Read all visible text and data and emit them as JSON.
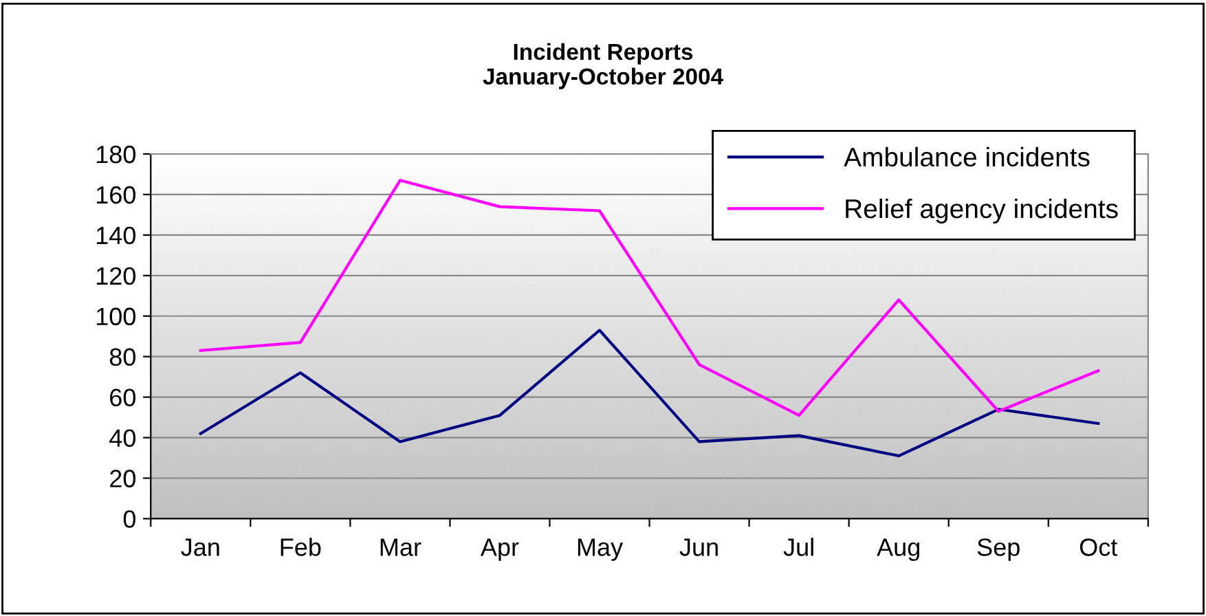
{
  "chart_data": {
    "type": "line",
    "title": "Incident Reports\nJanuary-October 2004",
    "categories": [
      "Jan",
      "Feb",
      "Mar",
      "Apr",
      "May",
      "Jun",
      "Jul",
      "Aug",
      "Sep",
      "Oct"
    ],
    "series": [
      {
        "name": "Ambulance incidents",
        "color": "#000080",
        "values": [
          42,
          72,
          38,
          51,
          93,
          38,
          41,
          31,
          54,
          47
        ]
      },
      {
        "name": "Relief agency incidents",
        "color": "#ff00ff",
        "values": [
          83,
          87,
          167,
          154,
          152,
          76,
          51,
          108,
          53,
          73
        ]
      }
    ],
    "ylim": [
      0,
      180
    ],
    "yticks": [
      0,
      20,
      40,
      60,
      80,
      100,
      120,
      140,
      160,
      180
    ],
    "grid": "y",
    "legend": "top right",
    "marker": "none",
    "line_style": "solid"
  }
}
